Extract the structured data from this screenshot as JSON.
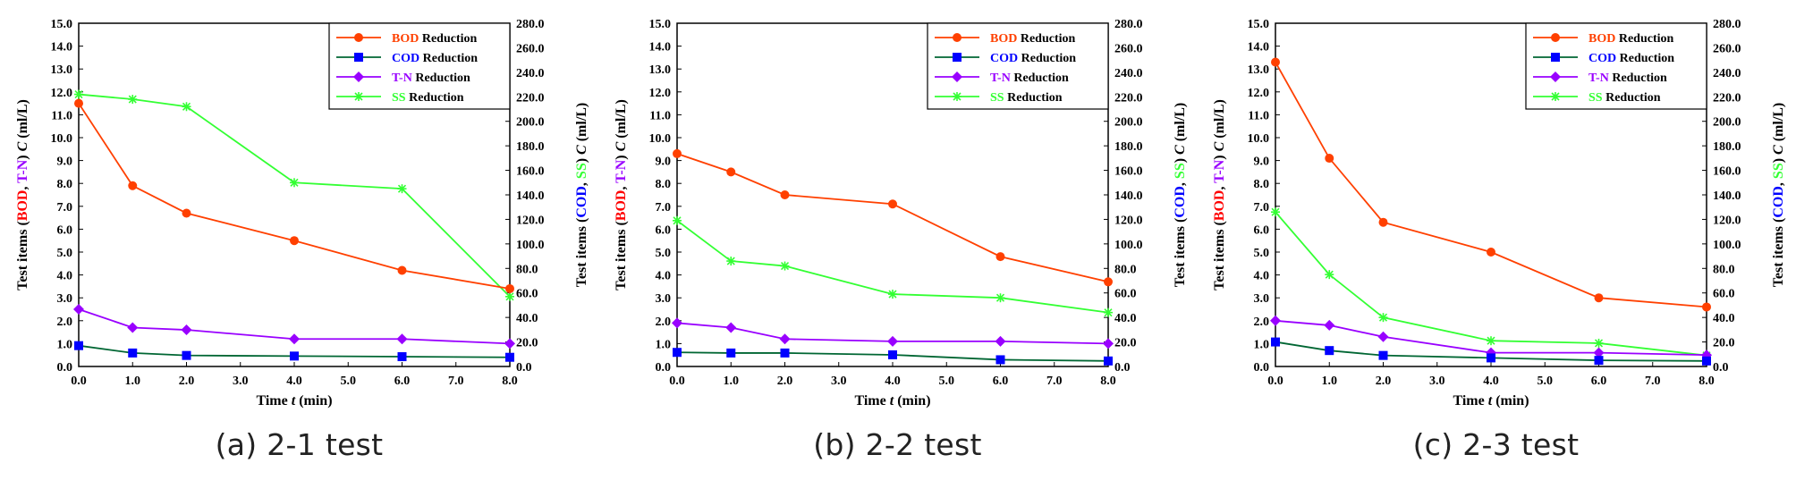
{
  "chart_data": [
    {
      "type": "line",
      "caption": "(a) 2-1 test",
      "xlabel_prefix": "Time ",
      "xlabel_var": "t",
      "xlabel_unit": " (min)",
      "ylabel_left": {
        "prefix": "Test items (",
        "a": "BOD",
        "sep": ", ",
        "b": "T-N",
        "suffix": ") ",
        "var": "C",
        "unit": " (ml/L)"
      },
      "ylabel_right": {
        "prefix": "Test items (",
        "a": "COD",
        "sep": ", ",
        "b": "SS",
        "suffix": ") ",
        "var": "C",
        "unit": " (ml/L)"
      },
      "xlim": [
        0,
        8
      ],
      "ylim_left": [
        0,
        15
      ],
      "ylim_right": [
        0,
        280
      ],
      "x_ticks": [
        "0.0",
        "1.0",
        "2.0",
        "3.0",
        "4.0",
        "5.0",
        "6.0",
        "7.0",
        "8.0"
      ],
      "y_left_ticks": [
        "0.0",
        "1.0",
        "2.0",
        "3.0",
        "4.0",
        "5.0",
        "6.0",
        "7.0",
        "8.0",
        "9.0",
        "10.0",
        "11.0",
        "12.0",
        "13.0",
        "14.0",
        "15.0"
      ],
      "y_right_ticks": [
        "0.0",
        "20.0",
        "40.0",
        "60.0",
        "80.0",
        "100.0",
        "120.0",
        "140.0",
        "160.0",
        "180.0",
        "200.0",
        "220.0",
        "240.0",
        "260.0",
        "280.0"
      ],
      "series": [
        {
          "key": "BOD",
          "label_colored": "BOD",
          "label_rest": " Reduction",
          "color": "#ff4000",
          "marker": "circle",
          "axis": "left",
          "x": [
            0,
            1,
            2,
            4,
            6,
            8
          ],
          "y": [
            11.5,
            7.9,
            6.7,
            5.5,
            4.2,
            3.4
          ]
        },
        {
          "key": "COD",
          "label_colored": "COD",
          "label_rest": " Reduction",
          "color": "#006633",
          "marker_color": "#0000ff",
          "marker": "square",
          "axis": "right",
          "x": [
            0,
            1,
            2,
            4,
            6,
            8
          ],
          "y": [
            17,
            11,
            9,
            8.5,
            8,
            7.5
          ]
        },
        {
          "key": "TN",
          "label_colored": "T-N",
          "label_rest": " Reduction",
          "color": "#9900ff",
          "marker": "diamond",
          "axis": "left",
          "x": [
            0,
            1,
            2,
            4,
            6,
            8
          ],
          "y": [
            2.5,
            1.7,
            1.6,
            1.2,
            1.2,
            1.0
          ]
        },
        {
          "key": "SS",
          "label_colored": "SS",
          "label_rest": " Reduction",
          "color": "#33ff33",
          "marker": "star",
          "axis": "right",
          "x": [
            0,
            1,
            2,
            4,
            6,
            8
          ],
          "y": [
            222,
            218,
            212,
            150,
            145,
            57
          ]
        }
      ]
    },
    {
      "type": "line",
      "caption": "(b) 2-2 test",
      "xlabel_prefix": "Time ",
      "xlabel_var": "t",
      "xlabel_unit": " (min)",
      "ylabel_left": {
        "prefix": "Test items (",
        "a": "BOD",
        "sep": ", ",
        "b": "T-N",
        "suffix": ") ",
        "var": "C",
        "unit": " (ml/L)"
      },
      "ylabel_right": {
        "prefix": "Test items (",
        "a": "COD",
        "sep": ", ",
        "b": "SS",
        "suffix": ") ",
        "var": "C",
        "unit": " (ml/L)"
      },
      "xlim": [
        0,
        8
      ],
      "ylim_left": [
        0,
        15
      ],
      "ylim_right": [
        0,
        280
      ],
      "x_ticks": [
        "0.0",
        "1.0",
        "2.0",
        "3.0",
        "4.0",
        "5.0",
        "6.0",
        "7.0",
        "8.0"
      ],
      "y_left_ticks": [
        "0.0",
        "1.0",
        "2.0",
        "3.0",
        "4.0",
        "5.0",
        "6.0",
        "7.0",
        "8.0",
        "9.0",
        "10.0",
        "11.0",
        "12.0",
        "13.0",
        "14.0",
        "15.0"
      ],
      "y_right_ticks": [
        "0.0",
        "20.0",
        "40.0",
        "60.0",
        "80.0",
        "100.0",
        "120.0",
        "140.0",
        "160.0",
        "180.0",
        "200.0",
        "220.0",
        "240.0",
        "260.0",
        "280.0"
      ],
      "series": [
        {
          "key": "BOD",
          "label_colored": "BOD",
          "label_rest": " Reduction",
          "color": "#ff4000",
          "marker": "circle",
          "axis": "left",
          "x": [
            0,
            1,
            2,
            4,
            6,
            8
          ],
          "y": [
            9.3,
            8.5,
            7.5,
            7.1,
            4.8,
            3.7
          ]
        },
        {
          "key": "COD",
          "label_colored": "COD",
          "label_rest": " Reduction",
          "color": "#006633",
          "marker_color": "#0000ff",
          "marker": "square",
          "axis": "right",
          "x": [
            0,
            1,
            2,
            4,
            6,
            8
          ],
          "y": [
            11.5,
            11,
            11,
            9.5,
            5.5,
            4.5
          ]
        },
        {
          "key": "TN",
          "label_colored": "T-N",
          "label_rest": " Reduction",
          "color": "#9900ff",
          "marker": "diamond",
          "axis": "left",
          "x": [
            0,
            1,
            2,
            4,
            6,
            8
          ],
          "y": [
            1.9,
            1.7,
            1.2,
            1.1,
            1.1,
            1.0
          ]
        },
        {
          "key": "SS",
          "label_colored": "SS",
          "label_rest": " Reduction",
          "color": "#33ff33",
          "marker": "star",
          "axis": "right",
          "x": [
            0,
            1,
            2,
            4,
            6,
            8
          ],
          "y": [
            119,
            86,
            82,
            59,
            56,
            44
          ]
        }
      ]
    },
    {
      "type": "line",
      "caption": "(c) 2-3 test",
      "xlabel_prefix": "Time ",
      "xlabel_var": "t",
      "xlabel_unit": " (min)",
      "ylabel_left": {
        "prefix": "Test items (",
        "a": "BOD",
        "sep": ", ",
        "b": "T-N",
        "suffix": ") ",
        "var": "C",
        "unit": " (ml/L)"
      },
      "ylabel_right": {
        "prefix": "Test items (",
        "a": "COD",
        "sep": ", ",
        "b": "SS",
        "suffix": ") ",
        "var": "C",
        "unit": " (ml/L)"
      },
      "xlim": [
        0,
        8
      ],
      "ylim_left": [
        0,
        15
      ],
      "ylim_right": [
        0,
        280
      ],
      "x_ticks": [
        "0.0",
        "1.0",
        "2.0",
        "3.0",
        "4.0",
        "5.0",
        "6.0",
        "7.0",
        "8.0"
      ],
      "y_left_ticks": [
        "0.0",
        "1.0",
        "2.0",
        "3.0",
        "4.0",
        "5.0",
        "6.0",
        "7.0",
        "8.0",
        "9.0",
        "10.0",
        "11.0",
        "12.0",
        "13.0",
        "14.0",
        "15.0"
      ],
      "y_right_ticks": [
        "0.0",
        "20.0",
        "40.0",
        "60.0",
        "80.0",
        "100.0",
        "120.0",
        "140.0",
        "160.0",
        "180.0",
        "200.0",
        "220.0",
        "240.0",
        "260.0",
        "280.0"
      ],
      "series": [
        {
          "key": "BOD",
          "label_colored": "BOD",
          "label_rest": " Reduction",
          "color": "#ff4000",
          "marker": "circle",
          "axis": "left",
          "x": [
            0,
            1,
            2,
            4,
            6,
            8
          ],
          "y": [
            13.3,
            9.1,
            6.3,
            5.0,
            3.0,
            2.6
          ]
        },
        {
          "key": "COD",
          "label_colored": "COD",
          "label_rest": " Reduction",
          "color": "#006633",
          "marker_color": "#0000ff",
          "marker": "square",
          "axis": "right",
          "x": [
            0,
            1,
            2,
            4,
            6,
            8
          ],
          "y": [
            20,
            13,
            9,
            7,
            5,
            4.5
          ]
        },
        {
          "key": "TN",
          "label_colored": "T-N",
          "label_rest": " Reduction",
          "color": "#9900ff",
          "marker": "diamond",
          "axis": "left",
          "x": [
            0,
            1,
            2,
            4,
            6,
            8
          ],
          "y": [
            2.0,
            1.8,
            1.3,
            0.6,
            0.6,
            0.5
          ]
        },
        {
          "key": "SS",
          "label_colored": "SS",
          "label_rest": " Reduction",
          "color": "#33ff33",
          "marker": "star",
          "axis": "right",
          "x": [
            0,
            1,
            2,
            4,
            6,
            8
          ],
          "y": [
            126,
            75,
            40,
            21,
            19,
            9
          ]
        }
      ]
    }
  ],
  "colors": {
    "axis": "#000000",
    "ylabel_a": "#ff0000",
    "ylabel_b": "#9900ff",
    "ylabel_c": "#0000ff",
    "ylabel_d": "#33ff33"
  }
}
